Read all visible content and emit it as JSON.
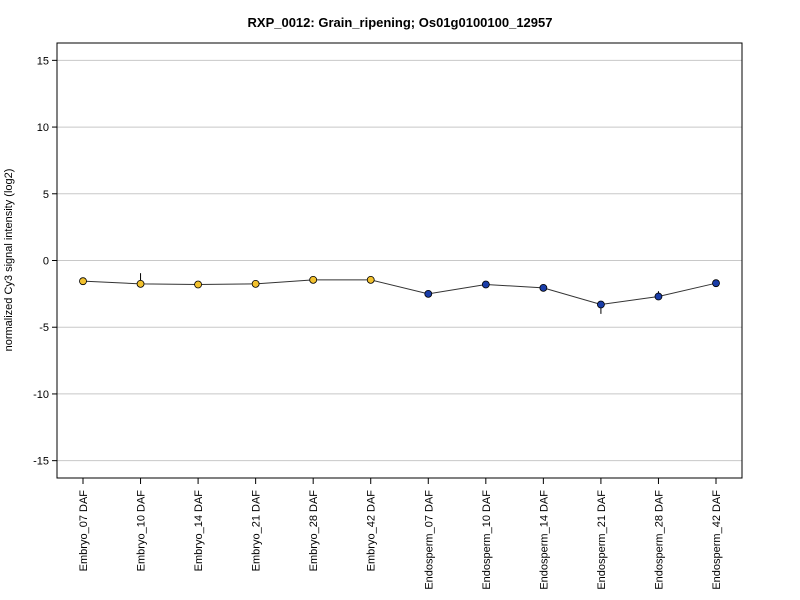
{
  "chart_data": {
    "type": "scatter",
    "title": "RXP_0012: Grain_ripening; Os01g0100100_12957",
    "xlabel": "",
    "ylabel": "normalized Cy3 signal intensity (log2)",
    "ylim": [
      -16.3,
      16.3
    ],
    "yticks": [
      -15,
      -10,
      -5,
      0,
      5,
      10,
      15
    ],
    "ytick_labels": [
      "-15",
      "-10",
      "-5",
      "0",
      "5",
      "10",
      "15"
    ],
    "grid": "horizontal at y ticks",
    "connected": true,
    "categories": [
      "Embryo_07 DAF",
      "Embryo_10 DAF",
      "Embryo_14 DAF",
      "Embryo_21 DAF",
      "Embryo_28 DAF",
      "Embryo_42 DAF",
      "Endosperm_07 DAF",
      "Endosperm_10 DAF",
      "Endosperm_14 DAF",
      "Endosperm_21 DAF",
      "Endosperm_28 DAF",
      "Endosperm_42 DAF"
    ],
    "values": [
      -1.55,
      -1.75,
      -1.8,
      -1.75,
      -1.45,
      -1.45,
      -2.5,
      -1.8,
      -2.05,
      -3.3,
      -2.7,
      -1.7
    ],
    "error_low": [
      -1.55,
      -1.9,
      -1.85,
      -1.8,
      -1.55,
      -1.5,
      -2.55,
      -1.95,
      -2.1,
      -4.0,
      -2.8,
      -1.75
    ],
    "error_high": [
      -1.5,
      -0.95,
      -1.75,
      -1.7,
      -1.35,
      -1.35,
      -2.45,
      -1.6,
      -1.95,
      -3.05,
      -2.3,
      -1.6
    ],
    "point_colors": [
      "#f2c12e",
      "#f2c12e",
      "#f2c12e",
      "#f2c12e",
      "#f2c12e",
      "#f2c12e",
      "#1a3da8",
      "#1a3da8",
      "#1a3da8",
      "#1a3da8",
      "#1a3da8",
      "#1a3da8"
    ],
    "colors": {
      "embryo": "#f2c12e",
      "endosperm": "#1a3da8",
      "line": "#333333",
      "grid": "#c8c8c8"
    }
  }
}
